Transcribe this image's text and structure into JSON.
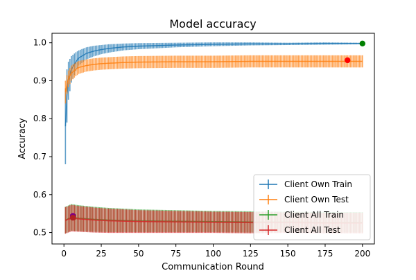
{
  "chart_data": {
    "type": "line",
    "title": "Model accuracy",
    "xlabel": "Communication Round",
    "ylabel": "Accuracy",
    "xlim": [
      -8,
      208
    ],
    "ylim": [
      0.47,
      1.025
    ],
    "xticks": [
      0,
      25,
      50,
      75,
      100,
      125,
      150,
      175,
      200
    ],
    "yticks": [
      0.5,
      0.6,
      0.7,
      0.8,
      0.9,
      1.0
    ],
    "ytick_labels": [
      "0.5",
      "0.6",
      "0.7",
      "0.8",
      "0.9",
      "1.0"
    ],
    "legend_position": "bottom-right",
    "series": [
      {
        "name": "Client Own Train",
        "color": "#1f77b4",
        "points": [
          [
            1,
            0.78
          ],
          [
            2,
            0.86
          ],
          [
            3,
            0.9
          ],
          [
            5,
            0.93
          ],
          [
            8,
            0.95
          ],
          [
            10,
            0.96
          ],
          [
            15,
            0.972
          ],
          [
            20,
            0.978
          ],
          [
            25,
            0.982
          ],
          [
            30,
            0.985
          ],
          [
            40,
            0.989
          ],
          [
            50,
            0.991
          ],
          [
            75,
            0.994
          ],
          [
            100,
            0.996
          ],
          [
            125,
            0.997
          ],
          [
            150,
            0.997
          ],
          [
            175,
            0.998
          ],
          [
            200,
            0.998
          ]
        ],
        "error": [
          [
            1,
            0.1
          ],
          [
            2,
            0.07
          ],
          [
            3,
            0.05
          ],
          [
            5,
            0.035
          ],
          [
            8,
            0.025
          ],
          [
            10,
            0.02
          ],
          [
            15,
            0.016
          ],
          [
            20,
            0.014
          ],
          [
            25,
            0.012
          ],
          [
            30,
            0.011
          ],
          [
            40,
            0.009
          ],
          [
            50,
            0.008
          ],
          [
            75,
            0.006
          ],
          [
            100,
            0.005
          ],
          [
            125,
            0.004
          ],
          [
            150,
            0.003
          ],
          [
            175,
            0.003
          ],
          [
            200,
            0.002
          ]
        ]
      },
      {
        "name": "Client Own Test",
        "color": "#ff7f0e",
        "points": [
          [
            1,
            0.87
          ],
          [
            2,
            0.89
          ],
          [
            3,
            0.905
          ],
          [
            5,
            0.92
          ],
          [
            8,
            0.93
          ],
          [
            10,
            0.935
          ],
          [
            15,
            0.94
          ],
          [
            20,
            0.943
          ],
          [
            25,
            0.945
          ],
          [
            30,
            0.946
          ],
          [
            40,
            0.948
          ],
          [
            50,
            0.949
          ],
          [
            75,
            0.95
          ],
          [
            100,
            0.95
          ],
          [
            125,
            0.951
          ],
          [
            150,
            0.951
          ],
          [
            175,
            0.951
          ],
          [
            200,
            0.951
          ]
        ],
        "error": [
          [
            1,
            0.03
          ],
          [
            2,
            0.025
          ],
          [
            3,
            0.022
          ],
          [
            5,
            0.02
          ],
          [
            8,
            0.018
          ],
          [
            10,
            0.017
          ],
          [
            15,
            0.016
          ],
          [
            20,
            0.016
          ],
          [
            25,
            0.016
          ],
          [
            30,
            0.016
          ],
          [
            40,
            0.016
          ],
          [
            50,
            0.016
          ],
          [
            75,
            0.016
          ],
          [
            100,
            0.016
          ],
          [
            125,
            0.016
          ],
          [
            150,
            0.016
          ],
          [
            175,
            0.016
          ],
          [
            200,
            0.016
          ]
        ]
      },
      {
        "name": "Client All Train",
        "color": "#2ca02c",
        "points": [
          [
            1,
            0.533
          ],
          [
            5,
            0.54
          ],
          [
            10,
            0.538
          ],
          [
            20,
            0.535
          ],
          [
            30,
            0.533
          ],
          [
            40,
            0.532
          ],
          [
            50,
            0.531
          ],
          [
            75,
            0.53
          ],
          [
            100,
            0.529
          ],
          [
            125,
            0.528
          ],
          [
            150,
            0.528
          ],
          [
            175,
            0.527
          ],
          [
            200,
            0.527
          ]
        ],
        "error": [
          [
            1,
            0.035
          ],
          [
            5,
            0.035
          ],
          [
            10,
            0.034
          ],
          [
            20,
            0.033
          ],
          [
            30,
            0.032
          ],
          [
            40,
            0.031
          ],
          [
            50,
            0.03
          ],
          [
            75,
            0.029
          ],
          [
            100,
            0.028
          ],
          [
            125,
            0.028
          ],
          [
            150,
            0.027
          ],
          [
            175,
            0.027
          ],
          [
            200,
            0.027
          ]
        ]
      },
      {
        "name": "Client All Test",
        "color": "#d62728",
        "points": [
          [
            1,
            0.532
          ],
          [
            5,
            0.538
          ],
          [
            10,
            0.536
          ],
          [
            20,
            0.533
          ],
          [
            30,
            0.531
          ],
          [
            40,
            0.53
          ],
          [
            50,
            0.529
          ],
          [
            75,
            0.528
          ],
          [
            100,
            0.527
          ],
          [
            125,
            0.526
          ],
          [
            150,
            0.526
          ],
          [
            175,
            0.525
          ],
          [
            200,
            0.525
          ]
        ],
        "error": [
          [
            1,
            0.035
          ],
          [
            5,
            0.035
          ],
          [
            10,
            0.034
          ],
          [
            20,
            0.033
          ],
          [
            30,
            0.032
          ],
          [
            40,
            0.031
          ],
          [
            50,
            0.03
          ],
          [
            75,
            0.029
          ],
          [
            100,
            0.028
          ],
          [
            125,
            0.028
          ],
          [
            150,
            0.027
          ],
          [
            175,
            0.027
          ],
          [
            200,
            0.027
          ]
        ]
      }
    ],
    "markers": [
      {
        "x": 200,
        "y": 0.998,
        "color": "#008000"
      },
      {
        "x": 190,
        "y": 0.954,
        "color": "#ff0000"
      },
      {
        "x": 6,
        "y": 0.544,
        "color": "#800080"
      },
      {
        "x": 6,
        "y": 0.539,
        "color": "#b22222"
      }
    ]
  }
}
